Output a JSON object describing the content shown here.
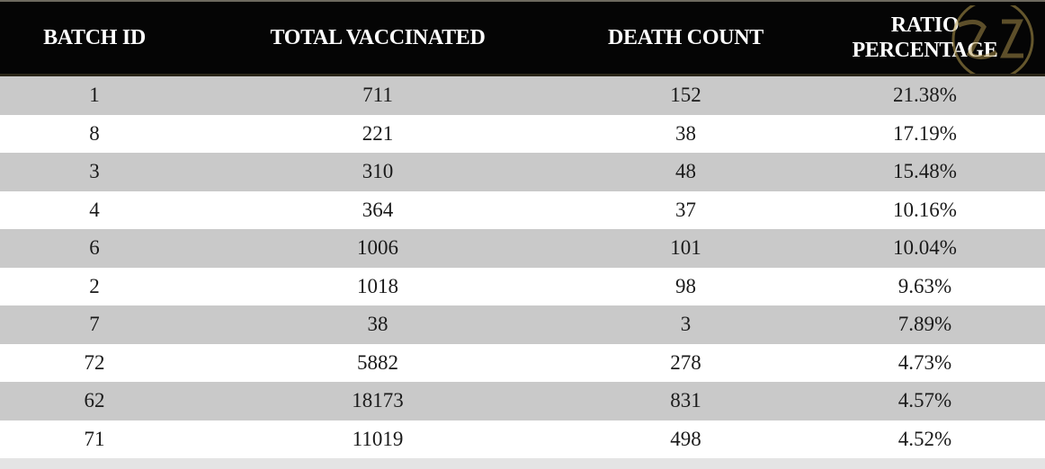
{
  "table": {
    "headers": {
      "batch_id": "BATCH ID",
      "total_vaccinated": "TOTAL VACCINATED",
      "death_count": "DEATH COUNT",
      "ratio_line1": "RATIO",
      "ratio_line2": "PERCENTAGE"
    },
    "rows": [
      {
        "batch": "1",
        "vaccinated": "711",
        "deaths": "152",
        "ratio": "21.38%"
      },
      {
        "batch": "8",
        "vaccinated": "221",
        "deaths": "38",
        "ratio": "17.19%"
      },
      {
        "batch": "3",
        "vaccinated": "310",
        "deaths": "48",
        "ratio": "15.48%"
      },
      {
        "batch": "4",
        "vaccinated": "364",
        "deaths": "37",
        "ratio": "10.16%"
      },
      {
        "batch": "6",
        "vaccinated": "1006",
        "deaths": "101",
        "ratio": "10.04%"
      },
      {
        "batch": "2",
        "vaccinated": "1018",
        "deaths": "98",
        "ratio": "9.63%"
      },
      {
        "batch": "7",
        "vaccinated": "38",
        "deaths": "3",
        "ratio": "7.89%"
      },
      {
        "batch": "72",
        "vaccinated": "5882",
        "deaths": "278",
        "ratio": "4.73%"
      },
      {
        "batch": "62",
        "vaccinated": "18173",
        "deaths": "831",
        "ratio": "4.57%"
      },
      {
        "batch": "71",
        "vaccinated": "11019",
        "deaths": "498",
        "ratio": "4.52%"
      }
    ]
  },
  "colors": {
    "header_bg": "#050505",
    "row_shade": "#c9c9c9",
    "row_light": "#ffffff",
    "watermark": "#b59a4f"
  },
  "watermark_icon": "logo-watermark-icon"
}
